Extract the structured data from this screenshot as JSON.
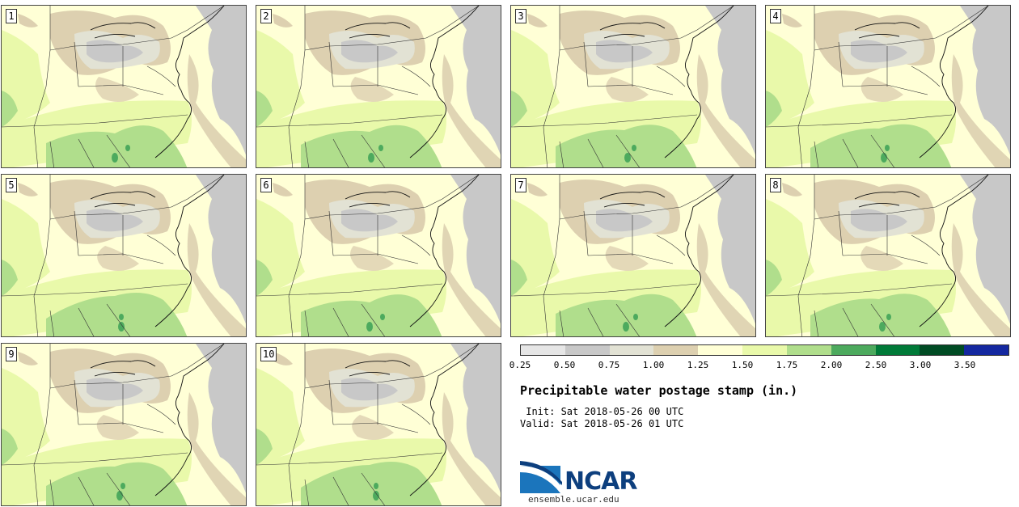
{
  "title": "Precipitable water postage stamp (in.)",
  "init_line": " Init: Sat 2018-05-26 00 UTC",
  "valid_line": "Valid: Sat 2018-05-26 01 UTC",
  "site": "ensemble.ucar.edu",
  "logo_text": "NCAR",
  "members": [
    "1",
    "2",
    "3",
    "4",
    "5",
    "6",
    "7",
    "8",
    "9",
    "10"
  ],
  "legend": {
    "ticks": [
      "0.25",
      "0.50",
      "0.75",
      "1.00",
      "1.25",
      "1.50",
      "1.75",
      "2.00",
      "2.50",
      "3.00",
      "3.50"
    ],
    "colors": [
      "#e6e6e6",
      "#c8c8c8",
      "#e2e2d4",
      "#ddd0b0",
      "#ffffd6",
      "#e9f9aa",
      "#b0de8c",
      "#4daa5e",
      "#007a38",
      "#004c24",
      "#1428a0"
    ]
  },
  "map_colors": {
    "gray": "#c8c8c8",
    "light_gray": "#e2e2d4",
    "tan": "#ddd0b0",
    "cream": "#ffffd6",
    "light_green": "#e9f9aa",
    "green": "#b0de8c",
    "dark_green": "#4daa5e",
    "border": "#333333"
  }
}
